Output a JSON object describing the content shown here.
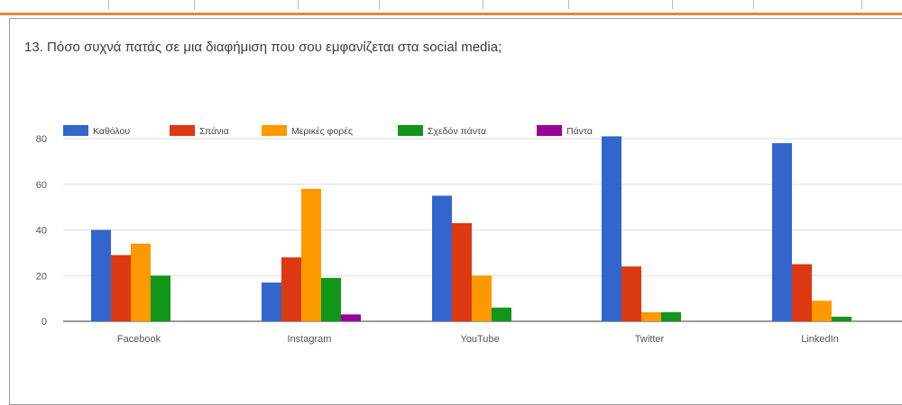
{
  "question": "13. Πόσο συχνά πατάς σε μια διαφήμιση που σου εμφανίζεται στα social media;",
  "chart_data": {
    "type": "bar",
    "categories": [
      "Facebook",
      "Instagram",
      "YouTube",
      "Twitter",
      "LinkedIn"
    ],
    "series": [
      {
        "name": "Καθόλου",
        "color": "#3366cc",
        "values": [
          40,
          17,
          55,
          81,
          78
        ]
      },
      {
        "name": "Σπάνια",
        "color": "#dc3912",
        "values": [
          29,
          28,
          43,
          24,
          25
        ]
      },
      {
        "name": "Μερικές φορές",
        "color": "#ff9900",
        "values": [
          34,
          58,
          20,
          4,
          9
        ]
      },
      {
        "name": "Σχεδόν πάντα",
        "color": "#109618",
        "values": [
          20,
          19,
          6,
          4,
          2
        ]
      },
      {
        "name": "Πάντα",
        "color": "#990099",
        "values": [
          0,
          3,
          0,
          0,
          0
        ]
      }
    ],
    "yticks": [
      0,
      20,
      40,
      60,
      80
    ],
    "ylim": [
      0,
      81
    ],
    "grid": true,
    "legend": "top-left",
    "title": "",
    "xlabel": "",
    "ylabel": ""
  }
}
